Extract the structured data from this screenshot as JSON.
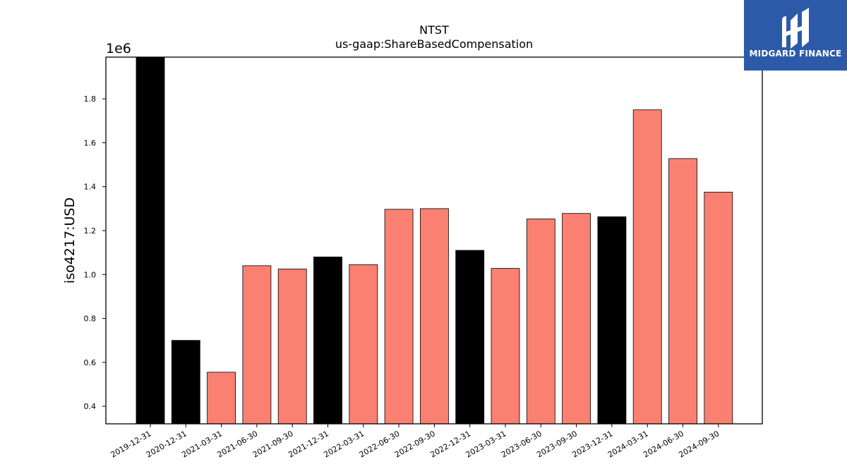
{
  "chart_data": {
    "type": "bar",
    "title": "NTST",
    "subtitle": "us-gaap:ShareBasedCompensation",
    "ylabel": "iso4217:USD",
    "xlabel": "",
    "y_offset_label": "1e6",
    "ylim": [
      0.32,
      1.99
    ],
    "y_ticks": [
      "0.4",
      "0.6",
      "0.8",
      "1.0",
      "1.2",
      "1.4",
      "1.6",
      "1.8"
    ],
    "categories": [
      "2019-12-31",
      "2020-12-31",
      "2021-03-31",
      "2021-06-30",
      "2021-09-30",
      "2021-12-31",
      "2022-03-31",
      "2022-06-30",
      "2022-09-30",
      "2022-12-31",
      "2023-03-31",
      "2023-06-30",
      "2023-09-30",
      "2023-12-31",
      "2024-03-31",
      "2024-06-30",
      "2024-09-30"
    ],
    "values": [
      1.99,
      0.7,
      0.555,
      1.04,
      1.025,
      1.08,
      1.045,
      1.297,
      1.3,
      1.11,
      1.028,
      1.253,
      1.278,
      1.263,
      1.75,
      1.528,
      1.375
    ],
    "bar_kind": [
      "annual",
      "annual",
      "quarterly",
      "quarterly",
      "quarterly",
      "annual",
      "quarterly",
      "quarterly",
      "quarterly",
      "annual",
      "quarterly",
      "quarterly",
      "quarterly",
      "annual",
      "quarterly",
      "quarterly",
      "quarterly"
    ],
    "colors": {
      "annual": "#000000",
      "quarterly": "#fa8072",
      "edge": "#000000"
    },
    "grid": false,
    "legend": "none"
  },
  "brand": {
    "name": "MIDGARD FINANCE",
    "color": "#2c5aa8",
    "icon": "midgard-logo-icon"
  }
}
